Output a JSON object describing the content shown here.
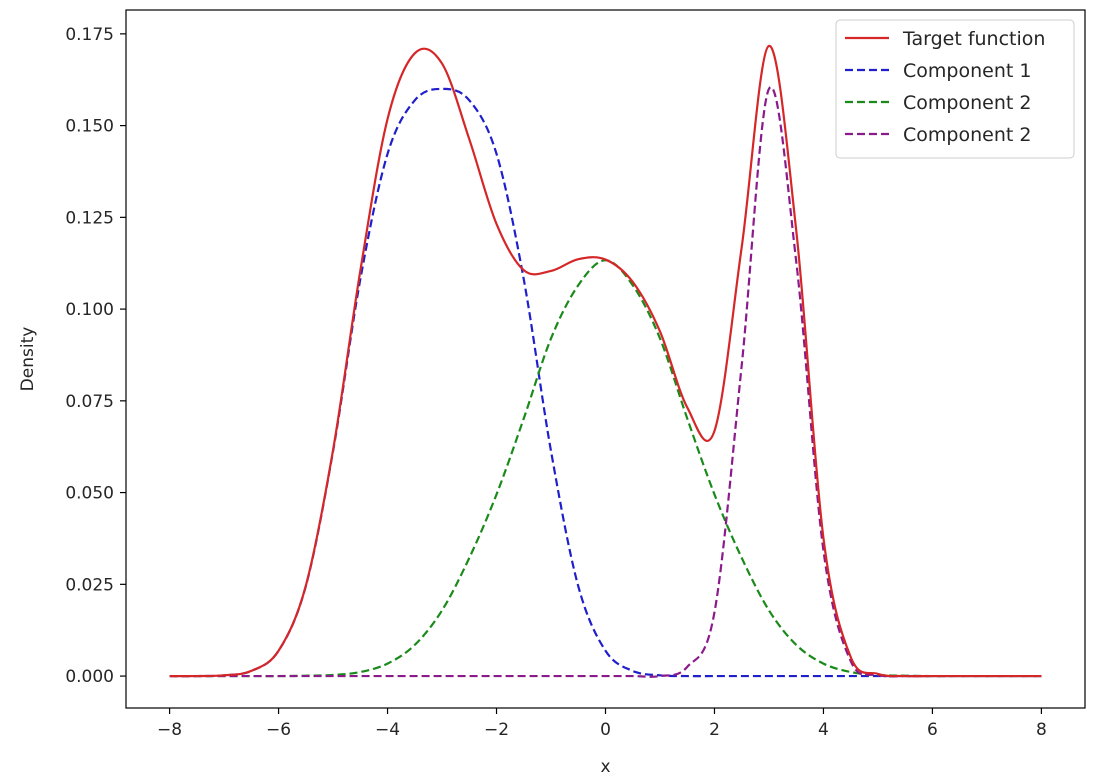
{
  "chart_data": {
    "type": "line",
    "title": "",
    "xlabel": "x",
    "ylabel": "Density",
    "xlim": [
      -8.8,
      8.8
    ],
    "ylim": [
      -0.0087,
      0.1815
    ],
    "x_ticks": [
      -8,
      -6,
      -4,
      -2,
      0,
      2,
      4,
      6,
      8
    ],
    "x_tick_labels": [
      "−8",
      "−6",
      "−4",
      "−2",
      "0",
      "2",
      "4",
      "6",
      "8"
    ],
    "y_ticks": [
      0.0,
      0.025,
      0.05,
      0.075,
      0.1,
      0.125,
      0.15,
      0.175
    ],
    "y_tick_labels": [
      "0.000",
      "0.025",
      "0.050",
      "0.075",
      "0.100",
      "0.125",
      "0.150",
      "0.175"
    ],
    "grid": false,
    "legend_position": "top-right",
    "x": [
      -8.0,
      -7.5,
      -7.0,
      -6.5,
      -6.0,
      -5.5,
      -5.0,
      -4.5,
      -4.0,
      -3.5,
      -3.0,
      -2.5,
      -2.0,
      -1.5,
      -1.0,
      -0.5,
      0.0,
      0.5,
      1.0,
      1.5,
      2.0,
      2.5,
      3.0,
      3.5,
      4.0,
      4.5,
      5.0,
      5.5,
      6.0,
      6.5,
      7.0,
      7.5,
      8.0
    ],
    "series": [
      {
        "name": "Target function",
        "style": "solid",
        "color": "#d62728",
        "values": [
          0.0,
          0.0,
          0.0002,
          0.0014,
          0.0069,
          0.0246,
          0.0616,
          0.1104,
          0.1518,
          0.1697,
          0.1669,
          0.1463,
          0.1232,
          0.1106,
          0.1104,
          0.1136,
          0.1135,
          0.1074,
          0.0939,
          0.0732,
          0.0668,
          0.1169,
          0.1717,
          0.1215,
          0.0376,
          0.0052,
          0.0006,
          0.0,
          0.0,
          0.0,
          0.0,
          0.0,
          0.0
        ]
      },
      {
        "name": "Component 1",
        "style": "dashed",
        "color": "#1f1fcc",
        "values": [
          0.0,
          0.0,
          0.0002,
          0.0014,
          0.0069,
          0.0245,
          0.0613,
          0.1081,
          0.1423,
          0.1569,
          0.16,
          0.1569,
          0.1423,
          0.1081,
          0.0613,
          0.0245,
          0.0069,
          0.0014,
          0.0002,
          0.0,
          0.0,
          0.0,
          0.0,
          0.0,
          0.0,
          0.0,
          0.0,
          0.0,
          0.0,
          0.0,
          0.0,
          0.0,
          0.0
        ]
      },
      {
        "name": "Component 2",
        "style": "dashed",
        "color": "#1a8a1a",
        "values": [
          0.0,
          0.0,
          0.0,
          0.0,
          0.0,
          0.0001,
          0.0003,
          0.0011,
          0.0034,
          0.0085,
          0.0179,
          0.0322,
          0.0495,
          0.0702,
          0.092,
          0.1065,
          0.1133,
          0.1065,
          0.092,
          0.0702,
          0.0495,
          0.0322,
          0.0179,
          0.0085,
          0.0034,
          0.0011,
          0.0003,
          0.0001,
          0.0,
          0.0,
          0.0,
          0.0,
          0.0
        ]
      },
      {
        "name": "Component 2",
        "style": "dashed",
        "color": "#8b1a8b",
        "values": [
          0.0,
          0.0,
          0.0,
          0.0,
          0.0,
          0.0,
          0.0,
          0.0,
          0.0,
          0.0,
          0.0,
          0.0,
          0.0,
          0.0,
          0.0,
          0.0,
          0.0,
          0.0,
          0.0,
          0.0025,
          0.0174,
          0.0847,
          0.16,
          0.113,
          0.0342,
          0.0041,
          0.0003,
          0.0,
          0.0,
          0.0,
          0.0,
          0.0,
          0.0
        ]
      }
    ]
  }
}
